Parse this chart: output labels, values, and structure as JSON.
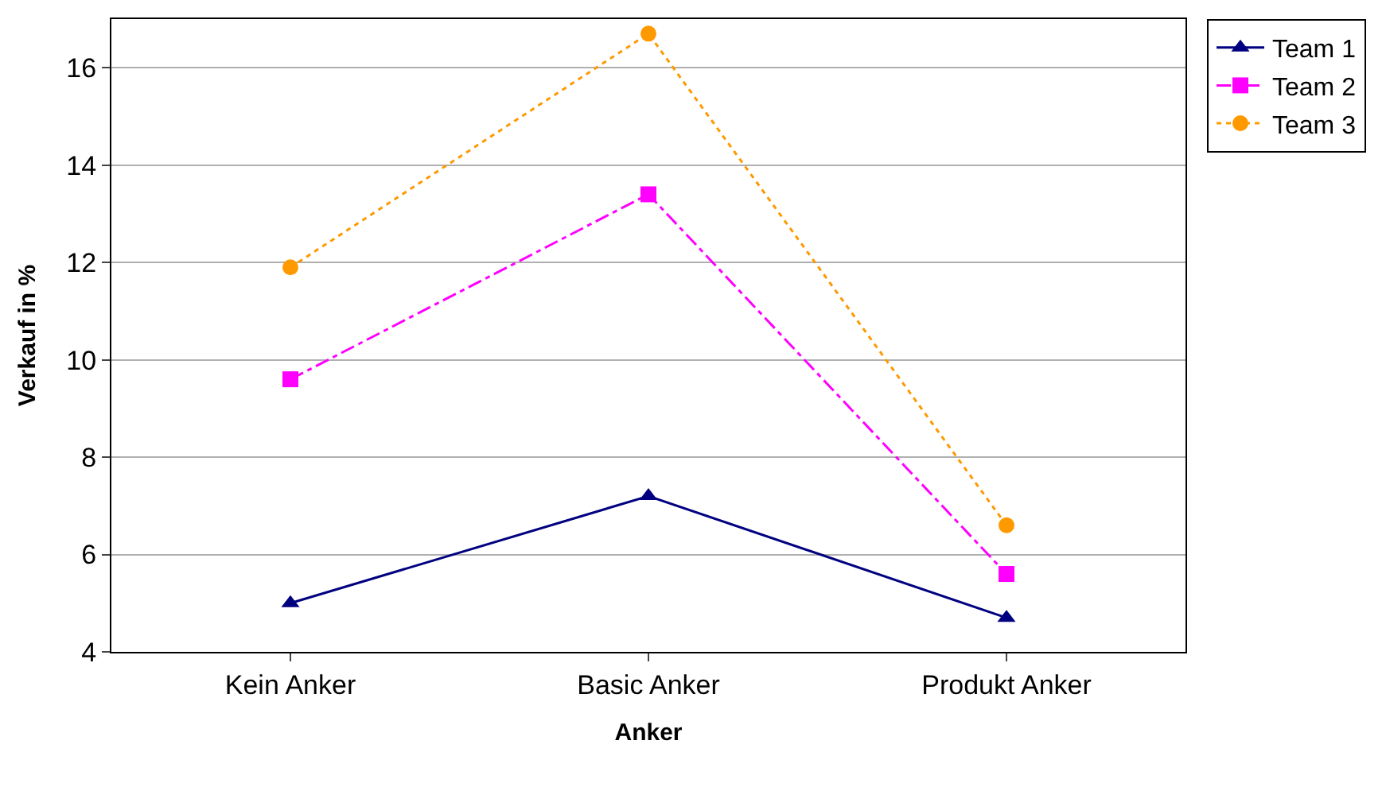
{
  "chart_data": {
    "type": "line",
    "xlabel": "Anker",
    "ylabel": "Verkauf in %",
    "categories": [
      "Kein Anker",
      "Basic Anker",
      "Produkt Anker"
    ],
    "series": [
      {
        "name": "Team 1",
        "color": "#000080",
        "values": [
          5.0,
          7.2,
          4.7
        ],
        "marker": "triangle",
        "line_style": "solid"
      },
      {
        "name": "Team 2",
        "color": "#ff00ff",
        "values": [
          9.6,
          13.4,
          5.6
        ],
        "marker": "square",
        "line_style": "dashed"
      },
      {
        "name": "Team 3",
        "color": "#ff9900",
        "values": [
          11.9,
          16.7,
          6.6
        ],
        "marker": "circle",
        "line_style": "dotted"
      }
    ],
    "ylim": [
      4,
      17
    ],
    "yticks": [
      4,
      6,
      8,
      10,
      12,
      14,
      16
    ],
    "grid": "y",
    "legend": "top right"
  }
}
